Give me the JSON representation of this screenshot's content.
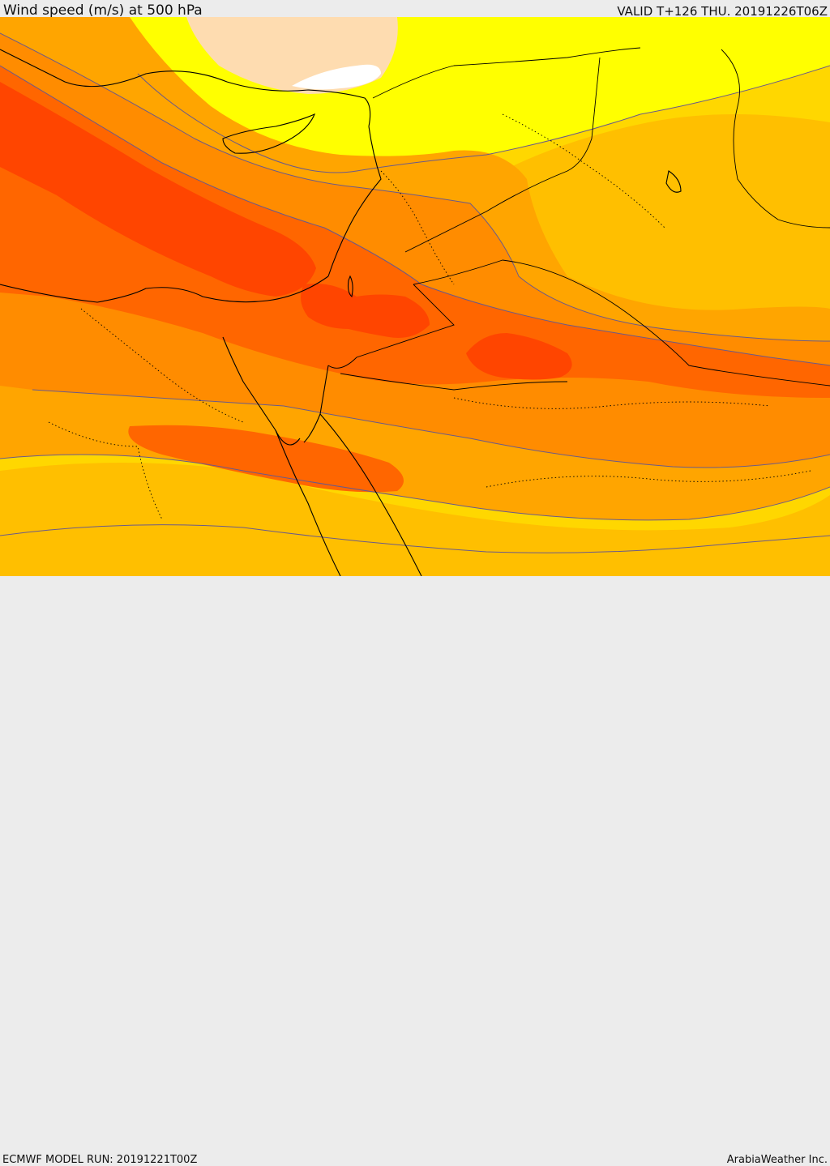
{
  "header": {
    "title": "Wind speed (m/s) at 500 hPa",
    "valid_time": "VALID T+126 THU. 20191226T06Z"
  },
  "footer": {
    "model_run": "ECMWF MODEL RUN: 20191221T00Z",
    "credit": "ArabiaWeather Inc."
  },
  "palette": {
    "band1": "#ffffff",
    "band2": "#fedcb0",
    "band3": "#ffff00",
    "band4": "#ffd700",
    "band5": "#ffbf00",
    "band6": "#ffa500",
    "band7": "#ff8c00",
    "band8": "#ff6600",
    "band9": "#ff4500",
    "contour": "#6a5a8a",
    "coast": "#000000"
  }
}
